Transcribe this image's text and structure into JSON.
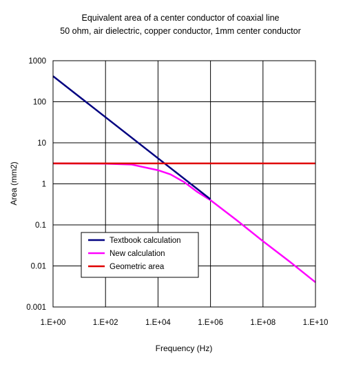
{
  "chart_data": {
    "type": "line",
    "title": "Equivalent area of a center conductor of coaxial line",
    "subtitle": "50 ohm, air dielectric, copper conductor, 1mm center conductor",
    "xlabel": "Frequency (Hz)",
    "ylabel": "Area (mm2)",
    "x_scale": "log",
    "y_scale": "log",
    "xlim": [
      1,
      10000000000
    ],
    "ylim": [
      0.001,
      1000
    ],
    "grid": true,
    "legend_position": "bottom-left",
    "x_ticks": [
      {
        "value": 1,
        "label": "1.E+00"
      },
      {
        "value": 100,
        "label": "1.E+02"
      },
      {
        "value": 10000,
        "label": "1.E+04"
      },
      {
        "value": 1000000,
        "label": "1.E+06"
      },
      {
        "value": 100000000,
        "label": "1.E+08"
      },
      {
        "value": 10000000000,
        "label": "1.E+10"
      }
    ],
    "y_ticks": [
      {
        "value": 0.001,
        "label": "0.001"
      },
      {
        "value": 0.01,
        "label": "0.01"
      },
      {
        "value": 0.1,
        "label": "0.1"
      },
      {
        "value": 1,
        "label": "1"
      },
      {
        "value": 10,
        "label": "10"
      },
      {
        "value": 100,
        "label": "100"
      },
      {
        "value": 1000,
        "label": "1000"
      }
    ],
    "series": [
      {
        "name": "Textbook calculation",
        "color": "#000080",
        "x": [
          1,
          1000000
        ],
        "y": [
          420,
          0.42
        ]
      },
      {
        "name": "New calculation",
        "color": "#ff00ff",
        "x": [
          1,
          100,
          1000,
          10000,
          30000,
          100000,
          300000,
          1000000,
          10000000,
          100000000,
          1000000000,
          10000000000
        ],
        "y": [
          3.14,
          3.1,
          2.95,
          2.15,
          1.7,
          1.1,
          0.65,
          0.4,
          0.13,
          0.04,
          0.013,
          0.004
        ]
      },
      {
        "name": "Geometric area",
        "color": "#e00000",
        "x": [
          1,
          10000000000
        ],
        "y": [
          3.14,
          3.14
        ]
      }
    ]
  }
}
